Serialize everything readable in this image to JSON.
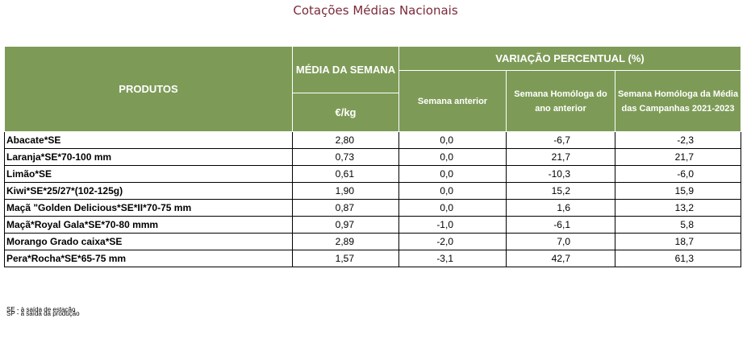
{
  "title": "Cotações Médias Nacionais",
  "headers": {
    "produtos": "PRODUTOS",
    "media_semana": "MÉDIA DA SEMANA",
    "unit": "€/kg",
    "variacao": "VARIAÇÃO PERCENTUAL (%)",
    "semana_anterior": "Semana anterior",
    "semana_homologa": "Semana Homóloga do ano anterior",
    "semana_homologa_media": "Semana Homóloga da Média das Campanhas 2021-2023"
  },
  "rows": [
    {
      "produto": "Abacate*SE",
      "media": "2,80",
      "anterior": "0,0",
      "homologa": "-6,7",
      "campanhas": "-2,3"
    },
    {
      "produto": "Laranja*SE*70-100 mm",
      "media": "0,73",
      "anterior": "0,0",
      "homologa": "21,7",
      "campanhas": "21,7"
    },
    {
      "produto": "Limão*SE",
      "media": "0,61",
      "anterior": "0,0",
      "homologa": "-10,3",
      "campanhas": "-6,0"
    },
    {
      "produto": "Kiwi*SE*25/27*(102-125g)",
      "media": "1,90",
      "anterior": "0,0",
      "homologa": "15,2",
      "campanhas": "15,9"
    },
    {
      "produto": "Maçã \"Golden Delicious*SE*II*70-75 mm",
      "media": "0,87",
      "anterior": "0,0",
      "homologa": "1,6",
      "campanhas": "13,2"
    },
    {
      "produto": "Maçã*Royal Gala*SE*70-80 mmm",
      "media": "0,97",
      "anterior": "-1,0",
      "homologa": "-6,1",
      "campanhas": "5,8"
    },
    {
      "produto": "Morango Grado caixa*SE",
      "media": "2,89",
      "anterior": "-2,0",
      "homologa": "7,0",
      "campanhas": "18,7"
    },
    {
      "produto": "Pera*Rocha*SE*65-75 mm",
      "media": "1,57",
      "anterior": "-3,1",
      "homologa": "42,7",
      "campanhas": "61,3"
    }
  ],
  "notes": [
    "SE - à saída de estação",
    "SP - à saída da produção"
  ]
}
